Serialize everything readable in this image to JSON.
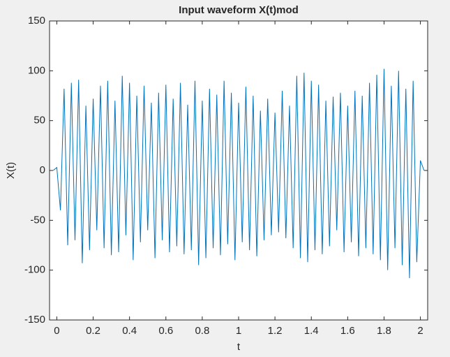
{
  "chart_data": {
    "type": "line",
    "title": "Input waveform X(t)mod",
    "x_label": "t",
    "y_label": "X(t)",
    "x": [
      -0.02,
      0,
      0.02,
      0.04,
      0.06,
      0.08,
      0.1,
      0.12,
      0.14,
      0.16,
      0.18,
      0.2,
      0.22,
      0.24,
      0.26,
      0.28,
      0.3,
      0.32,
      0.34,
      0.36,
      0.38,
      0.4,
      0.42,
      0.44,
      0.46,
      0.48,
      0.5,
      0.52,
      0.54,
      0.56,
      0.58,
      0.6,
      0.62,
      0.64,
      0.66,
      0.68,
      0.7,
      0.72,
      0.74,
      0.76,
      0.78,
      0.8,
      0.82,
      0.84,
      0.86,
      0.88,
      0.9,
      0.92,
      0.94,
      0.96,
      0.98,
      1,
      1.02,
      1.04,
      1.06,
      1.08,
      1.1,
      1.12,
      1.14,
      1.16,
      1.18,
      1.2,
      1.22,
      1.24,
      1.26,
      1.28,
      1.3,
      1.32,
      1.34,
      1.36,
      1.38,
      1.4,
      1.42,
      1.44,
      1.46,
      1.48,
      1.5,
      1.52,
      1.54,
      1.56,
      1.58,
      1.6,
      1.62,
      1.64,
      1.66,
      1.68,
      1.7,
      1.72,
      1.74,
      1.76,
      1.78,
      1.8,
      1.82,
      1.84,
      1.86,
      1.88,
      1.9,
      1.92,
      1.94,
      1.96,
      1.98,
      2,
      2.02
    ],
    "series": [
      {
        "color": "#0072bd",
        "values": [
          0,
          3,
          -40,
          82,
          -75,
          88,
          -70,
          91,
          -93,
          65,
          -80,
          72,
          -60,
          85,
          -78,
          90,
          -85,
          70,
          -82,
          95,
          -65,
          88,
          -90,
          75,
          -72,
          85,
          -60,
          68,
          -88,
          78,
          -70,
          86,
          -82,
          72,
          -76,
          88,
          -84,
          66,
          -80,
          90,
          -95,
          70,
          -88,
          82,
          -78,
          76,
          -85,
          90,
          -74,
          78,
          -90,
          68,
          -72,
          84,
          -80,
          75,
          -86,
          60,
          -70,
          72,
          -65,
          58,
          -62,
          80,
          -68,
          65,
          -78,
          95,
          -88,
          98,
          -92,
          90,
          -80,
          86,
          -84,
          70,
          -76,
          74,
          -60,
          78,
          -82,
          65,
          -72,
          80,
          -86,
          75,
          -78,
          88,
          -84,
          96,
          -90,
          102,
          -100,
          85,
          -78,
          100,
          -95,
          82,
          -108,
          90,
          -92,
          10,
          0
        ]
      }
    ],
    "xlim": [
      -0.04,
      2.04
    ],
    "ylim": [
      -150,
      150
    ],
    "xticks": [
      0,
      0.2,
      0.4,
      0.6,
      0.8,
      1,
      1.2,
      1.4,
      1.6,
      1.8,
      2
    ],
    "yticks": [
      -150,
      -100,
      -50,
      0,
      50,
      100,
      150
    ]
  }
}
